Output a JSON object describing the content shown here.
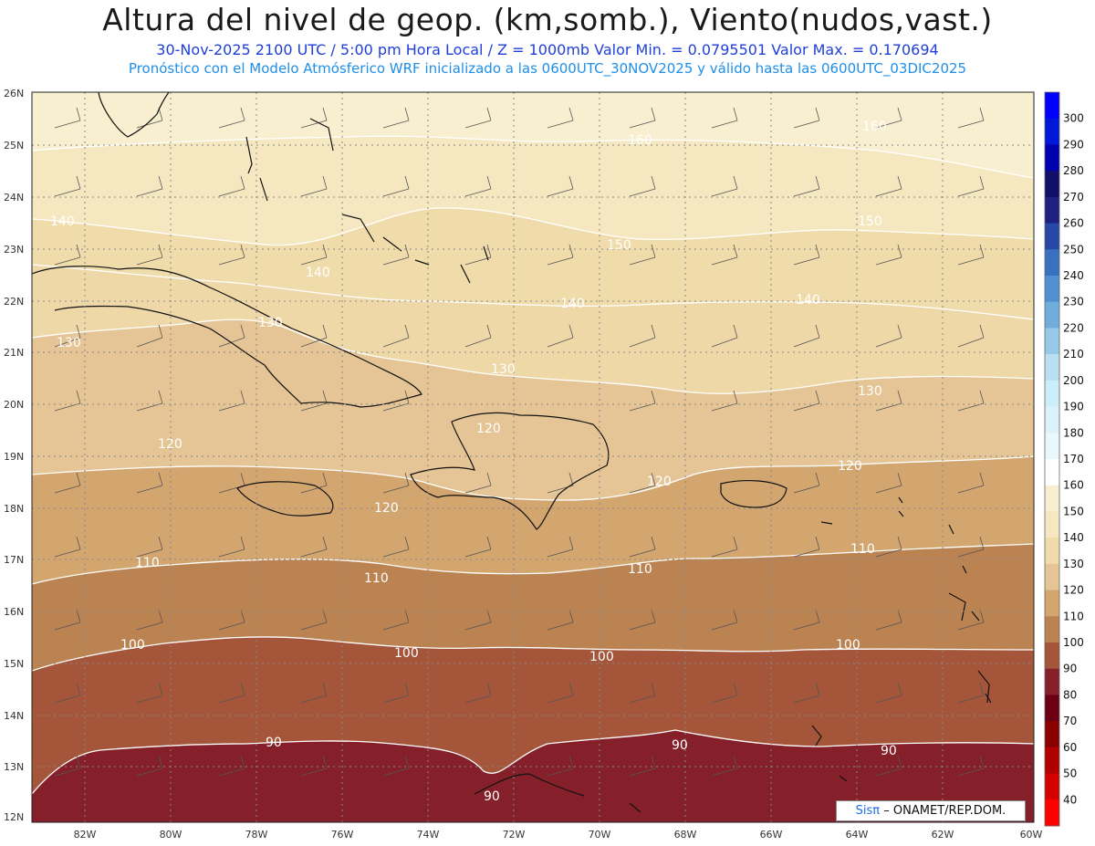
{
  "title": "Altura del nivel de geop. (km,somb.), Viento(nudos,vast.)",
  "subtitle_line1": "30-Nov-2025  2100 UTC / 5:00 pm Hora Local / Z = 1000mb  Valor Min. = 0.0795501   Valor Max. = 0.170694",
  "subtitle_line2": "Pronóstico con el Modelo Atmósferico WRF inicializado a las 0600UTC_30NOV2025 y válido hasta las  0600UTC_03DIC2025",
  "latitude_labels": [
    "26N",
    "25N",
    "24N",
    "23N",
    "22N",
    "21N",
    "20N",
    "19N",
    "18N",
    "17N",
    "16N",
    "15N",
    "14N",
    "13N",
    "12N"
  ],
  "longitude_labels": [
    "82W",
    "80W",
    "78W",
    "76W",
    "74W",
    "72W",
    "70W",
    "68W",
    "66W",
    "64W",
    "62W",
    "60W"
  ],
  "colorbar": {
    "labels": [
      "300",
      "290",
      "280",
      "270",
      "260",
      "250",
      "240",
      "230",
      "220",
      "210",
      "200",
      "190",
      "180",
      "170",
      "160",
      "150",
      "140",
      "130",
      "120",
      "110",
      "100",
      "90",
      "80",
      "70",
      "60",
      "50",
      "40"
    ],
    "colors": [
      "#0000ff",
      "#0018d8",
      "#0000b0",
      "#10106a",
      "#202080",
      "#2848a8",
      "#3a70c0",
      "#5090d0",
      "#70acdc",
      "#98c8e8",
      "#b8e0f0",
      "#cceef8",
      "#dcf2fb",
      "#e8f8fc",
      "#ffffff",
      "#f7efcf",
      "#f5e8c0",
      "#f0dcab",
      "#e5c595",
      "#d3a66f",
      "#bc8352",
      "#a4553a",
      "#85202a",
      "#6e0014",
      "#8a0000",
      "#b00000",
      "#d60000",
      "#ff0000"
    ]
  },
  "contour_labels": {
    "c90": "90",
    "c100": "100",
    "c110": "110",
    "c120": "120",
    "c130": "130",
    "c140": "140",
    "c150": "150",
    "c160": "160"
  },
  "credit": {
    "brand": "Sisπ",
    "text": "– ONAMET/REP.DOM."
  }
}
